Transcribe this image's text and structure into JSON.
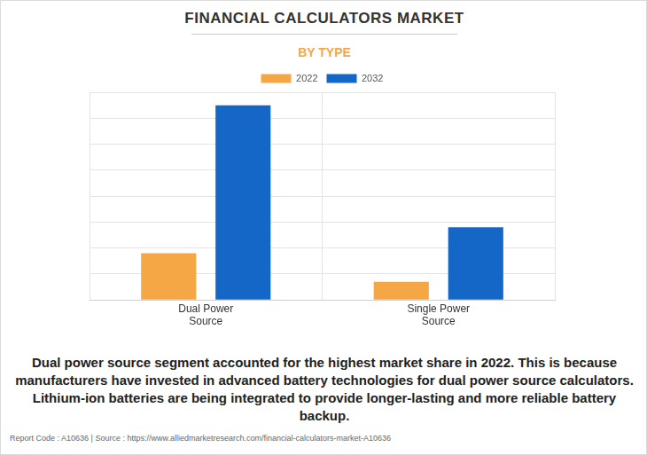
{
  "chart_data": {
    "type": "bar",
    "title": "FINANCIAL CALCULATORS MARKET",
    "subtitle": "BY TYPE",
    "caption": "Dual power source segment accounted for the highest market share in 2022. This is because manufacturers have invested in advanced battery technologies for dual power source calculators. Lithium-ion batteries are being integrated to provide longer-lasting and more reliable battery backup.",
    "source": "Report Code : A10636  |  Source : https://www.alliedmarketresearch.com/financial-calculators-market-A10636",
    "categories": [
      "Dual Power Source",
      "Single Power Source"
    ],
    "series": [
      {
        "name": "2022",
        "color": "#f4a744",
        "values": [
          1.8,
          0.7
        ]
      },
      {
        "name": "2032",
        "color": "#1467c7",
        "values": [
          7.5,
          2.8
        ]
      }
    ],
    "ylim": [
      0,
      8
    ],
    "yticks": [
      0,
      1,
      2,
      3,
      4,
      5,
      6,
      7,
      8
    ],
    "grid": true,
    "tick_labels": "x",
    "legend": "top"
  }
}
